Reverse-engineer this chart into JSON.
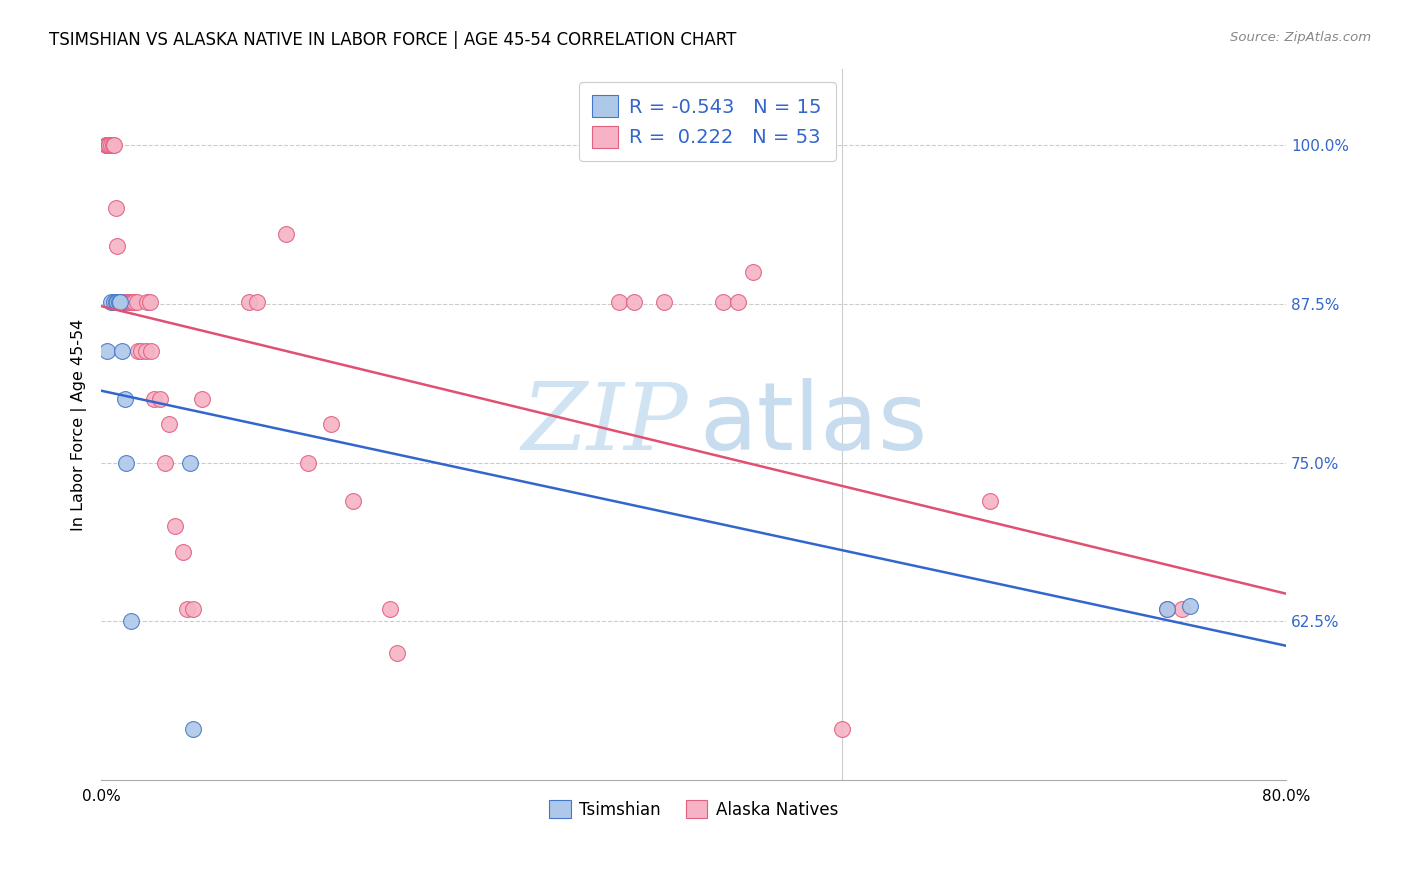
{
  "title": "TSIMSHIAN VS ALASKA NATIVE IN LABOR FORCE | AGE 45-54 CORRELATION CHART",
  "source": "Source: ZipAtlas.com",
  "ylabel": "In Labor Force | Age 45-54",
  "xlim": [
    0.0,
    0.8
  ],
  "ylim": [
    0.5,
    1.06
  ],
  "xticks": [
    0.0,
    0.1,
    0.2,
    0.3,
    0.4,
    0.5,
    0.6,
    0.7,
    0.8
  ],
  "xticklabels": [
    "0.0%",
    "",
    "",
    "",
    "",
    "",
    "",
    "",
    "80.0%"
  ],
  "yticks": [
    0.625,
    0.75,
    0.875,
    1.0
  ],
  "yticklabels": [
    "62.5%",
    "75.0%",
    "87.5%",
    "100.0%"
  ],
  "legend_R_tsimshian": "-0.543",
  "legend_N_tsimshian": "15",
  "legend_R_alaska": "0.222",
  "legend_N_alaska": "53",
  "tsimshian_color": "#adc8e8",
  "alaska_color": "#f5b3c5",
  "tsimshian_edge_color": "#4477cc",
  "alaska_edge_color": "#e06080",
  "tsimshian_line_color": "#3366cc",
  "alaska_line_color": "#e05070",
  "right_tick_color": "#3366cc",
  "tsimshian_x": [
    0.004,
    0.007,
    0.009,
    0.01,
    0.011,
    0.012,
    0.013,
    0.014,
    0.016,
    0.017,
    0.02,
    0.06,
    0.062,
    0.72,
    0.735
  ],
  "tsimshian_y": [
    0.838,
    0.876,
    0.876,
    0.876,
    0.876,
    0.876,
    0.876,
    0.838,
    0.8,
    0.75,
    0.625,
    0.75,
    0.54,
    0.635,
    0.637
  ],
  "alaska_x": [
    0.003,
    0.004,
    0.004,
    0.005,
    0.005,
    0.007,
    0.008,
    0.009,
    0.01,
    0.011,
    0.013,
    0.014,
    0.015,
    0.016,
    0.017,
    0.019,
    0.02,
    0.021,
    0.022,
    0.024,
    0.025,
    0.027,
    0.03,
    0.031,
    0.033,
    0.034,
    0.036,
    0.04,
    0.043,
    0.046,
    0.05,
    0.055,
    0.058,
    0.062,
    0.068,
    0.1,
    0.105,
    0.125,
    0.14,
    0.155,
    0.17,
    0.195,
    0.2,
    0.35,
    0.36,
    0.42,
    0.44,
    0.5,
    0.6,
    0.43,
    0.72,
    0.73,
    0.38
  ],
  "alaska_y": [
    1.0,
    1.0,
    1.0,
    1.0,
    1.0,
    1.0,
    1.0,
    1.0,
    0.95,
    0.92,
    0.876,
    0.876,
    0.876,
    0.876,
    0.876,
    0.876,
    0.876,
    0.876,
    0.876,
    0.876,
    0.838,
    0.838,
    0.838,
    0.876,
    0.876,
    0.838,
    0.8,
    0.8,
    0.75,
    0.78,
    0.7,
    0.68,
    0.635,
    0.635,
    0.8,
    0.876,
    0.876,
    0.93,
    0.75,
    0.78,
    0.72,
    0.635,
    0.6,
    0.876,
    0.876,
    0.876,
    0.9,
    0.54,
    0.72,
    0.876,
    0.635,
    0.635,
    0.876
  ]
}
